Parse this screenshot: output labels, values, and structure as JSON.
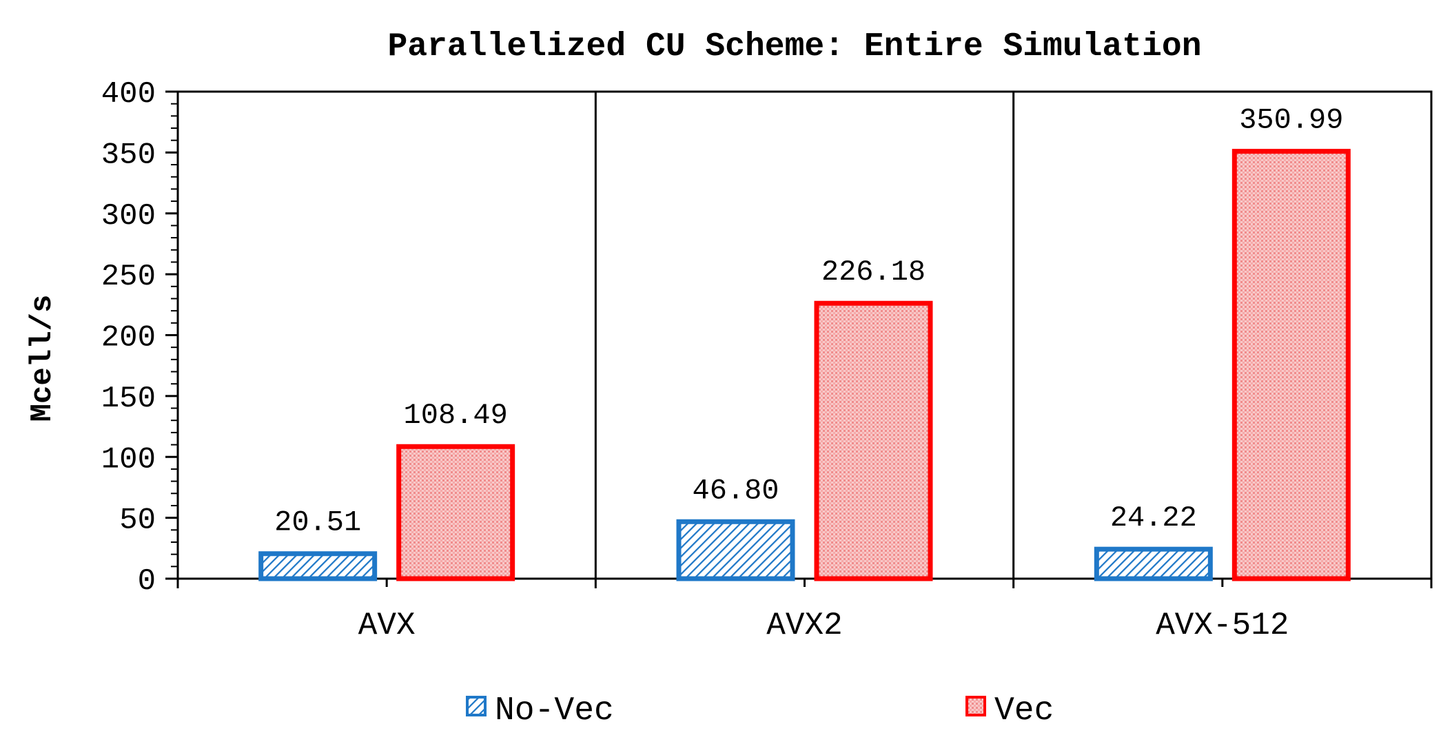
{
  "chart_data": {
    "type": "bar",
    "title": "Parallelized CU Scheme: Entire Simulation",
    "xlabel": "",
    "ylabel": "Mcell/s",
    "ylim": [
      0,
      400
    ],
    "yticks": [
      0,
      50,
      100,
      150,
      200,
      250,
      300,
      350,
      400
    ],
    "categories": [
      "AVX",
      "AVX2",
      "AVX-512"
    ],
    "series": [
      {
        "name": "No-Vec",
        "values": [
          20.51,
          46.8,
          24.22
        ],
        "labels": [
          "20.51",
          "46.80",
          "24.22"
        ],
        "color": "#1f78c8",
        "pattern": "diagonal-hatch"
      },
      {
        "name": "Vec",
        "values": [
          108.49,
          226.18,
          350.99
        ],
        "labels": [
          "108.49",
          "226.18",
          "350.99"
        ],
        "color": "#ff0000",
        "pattern": "dotted-pink"
      }
    ],
    "legend_position": "bottom"
  }
}
